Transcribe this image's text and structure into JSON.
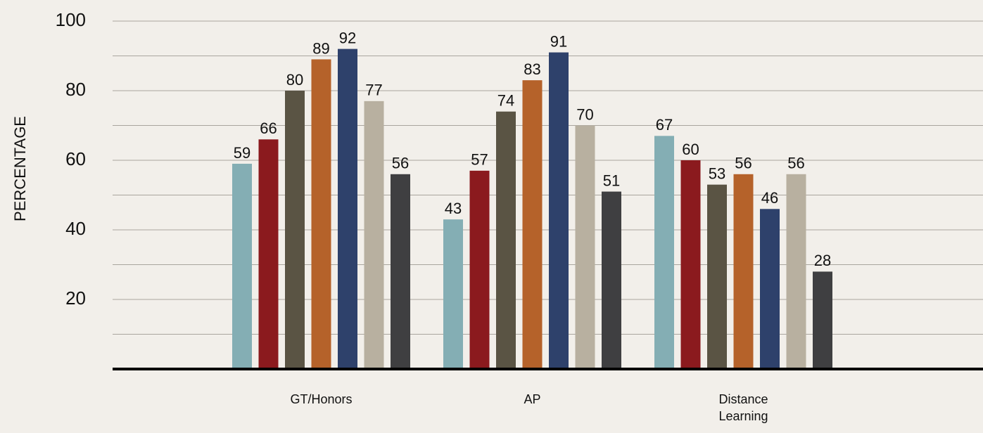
{
  "chart_data": {
    "type": "bar",
    "y_label": "PERCENTAGE",
    "categories": [
      "GT/Honors",
      "AP",
      "Distance Learning"
    ],
    "series": [
      {
        "color": "#84aeb4",
        "values": [
          59,
          43,
          67
        ]
      },
      {
        "color": "#8b1a1e",
        "values": [
          66,
          57,
          60
        ]
      },
      {
        "color": "#5a5444",
        "values": [
          80,
          74,
          53
        ]
      },
      {
        "color": "#b5622a",
        "values": [
          89,
          83,
          56
        ]
      },
      {
        "color": "#2e416b",
        "values": [
          92,
          91,
          46
        ]
      },
      {
        "color": "#b8b0a0",
        "values": [
          77,
          70,
          56
        ]
      },
      {
        "color": "#3f3f41",
        "values": [
          56,
          51,
          28
        ]
      }
    ],
    "ylim": [
      0,
      100
    ],
    "yticks": [
      20,
      40,
      60,
      80,
      100
    ],
    "minor_yticks": [
      10,
      30,
      50,
      70,
      90
    ],
    "grid": true
  }
}
